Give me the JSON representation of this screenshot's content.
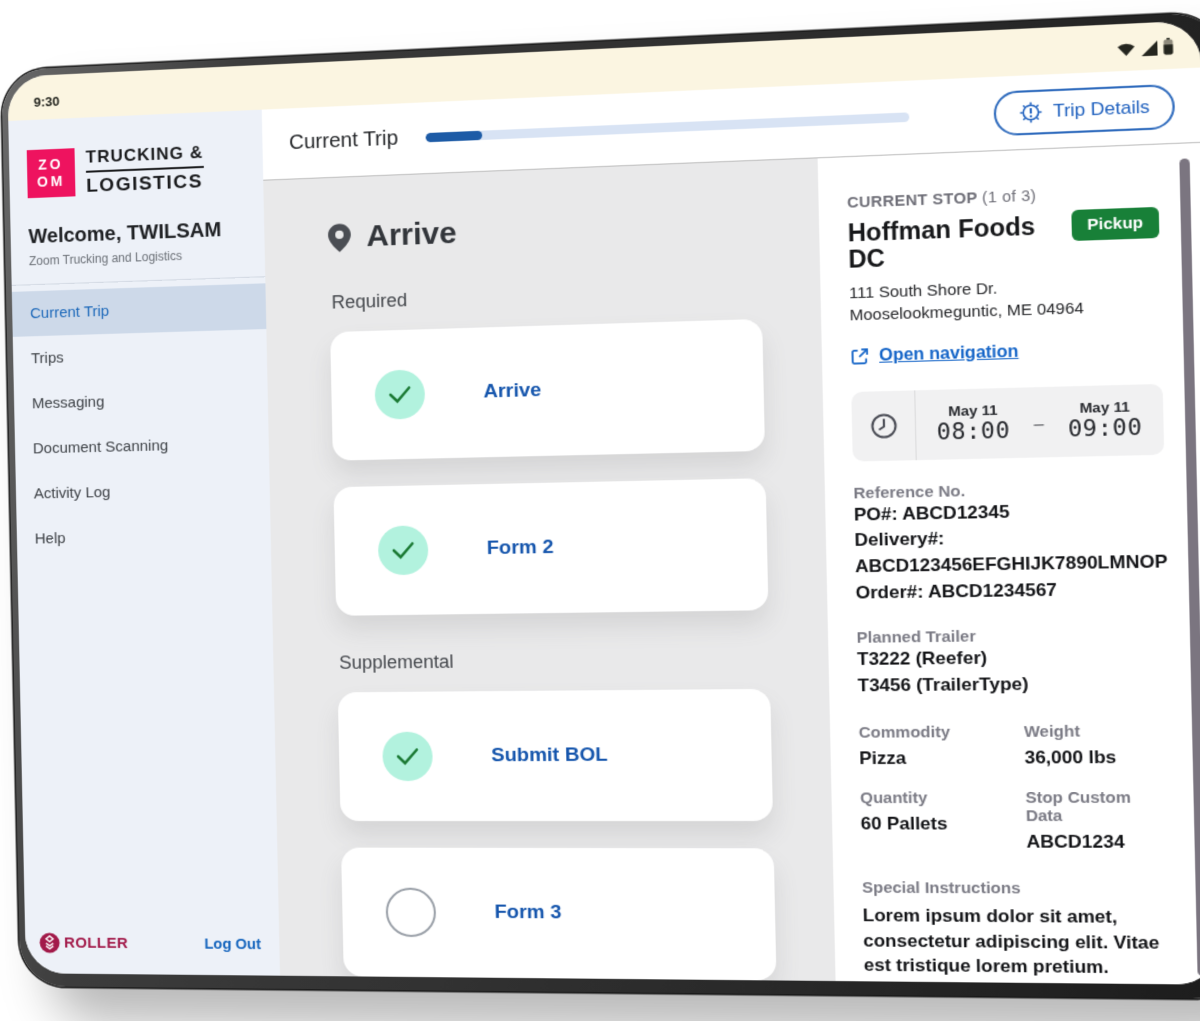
{
  "status_bar": {
    "time": "9:30"
  },
  "header": {
    "title": "Current Trip",
    "progress_percent": 12,
    "trip_details_label": "Trip Details"
  },
  "sidebar": {
    "logo": {
      "square_line1": "ZO",
      "square_line2": "OM",
      "text_line1": "TRUCKING &",
      "text_line2": "LOGISTICS"
    },
    "welcome": "Welcome, TWILSAM",
    "company": "Zoom Trucking and Logistics",
    "items": [
      {
        "label": "Current Trip",
        "active": true
      },
      {
        "label": "Trips",
        "active": false
      },
      {
        "label": "Messaging",
        "active": false
      },
      {
        "label": "Document Scanning",
        "active": false
      },
      {
        "label": "Activity Log",
        "active": false
      },
      {
        "label": "Help",
        "active": false
      }
    ],
    "footer": {
      "brand": "ROLLER",
      "logout": "Log Out"
    }
  },
  "checklist": {
    "title": "Arrive",
    "sections": [
      {
        "label": "Required",
        "items": [
          {
            "label": "Arrive",
            "checked": true
          },
          {
            "label": "Form 2",
            "checked": true
          }
        ]
      },
      {
        "label": "Supplemental",
        "items": [
          {
            "label": "Submit BOL",
            "checked": true
          },
          {
            "label": "Form 3",
            "checked": false
          }
        ]
      }
    ]
  },
  "stop_panel": {
    "kicker": "CURRENT STOP",
    "kicker_count": "(1 of 3)",
    "name": "Hoffman Foods DC",
    "badge": "Pickup",
    "address_line1": "111 South Shore Dr.",
    "address_line2": "Mooselookmeguntic, ME 04964",
    "nav_link": "Open navigation",
    "window": {
      "start_date": "May 11",
      "start_time": "08:00",
      "dash": "–",
      "end_date": "May 11",
      "end_time": "09:00"
    },
    "reference": {
      "label": "Reference No.",
      "po": "PO#: ABCD12345",
      "delivery_label": "Delivery#:",
      "delivery_value": "ABCD123456EFGHIJK7890LMNOP",
      "order": "Order#: ABCD1234567"
    },
    "planned_trailer": {
      "label": "Planned Trailer",
      "value1": "T3222 (Reefer)",
      "value2": "T3456 (TrailerType)"
    },
    "details": [
      {
        "label": "Commodity",
        "value": "Pizza"
      },
      {
        "label": "Weight",
        "value": "36,000 lbs"
      },
      {
        "label": "Quantity",
        "value": "60 Pallets"
      },
      {
        "label": "Stop Custom Data",
        "value": "ABCD1234"
      }
    ],
    "special": {
      "label": "Special Instructions",
      "text": "Lorem ipsum dolor sit amet, consectetur adipiscing elit. Vitae est tristique lorem pretium. Sollicitudin"
    }
  },
  "accents": {
    "brand_pink": "#ee135f",
    "link_blue": "#1565c8",
    "active_nav_blue": "#1a67b9",
    "pickup_green": "#188038",
    "check_mint": "#b2f2de",
    "check_green": "#1b7a34",
    "roller_maroon": "#a21a4a",
    "progress_blue": "#1d5ba6"
  }
}
